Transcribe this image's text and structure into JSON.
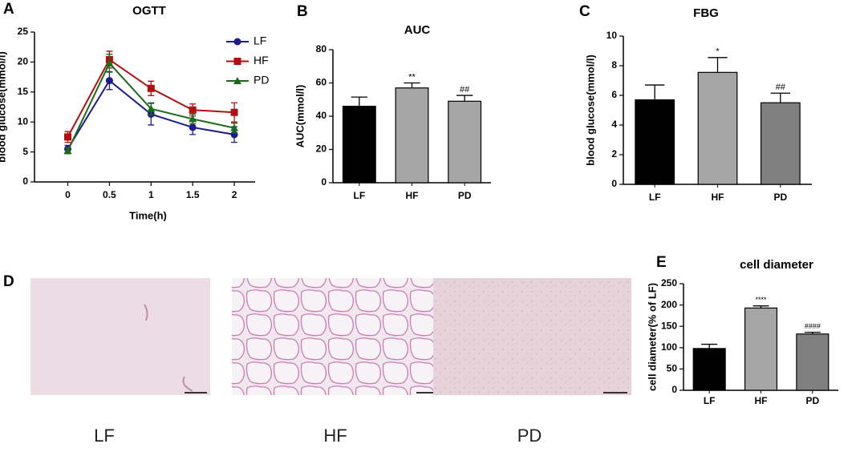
{
  "chart_data": [
    {
      "type": "line",
      "panel_label": "A",
      "title": "OGTT",
      "xlabel": "Time(h)",
      "ylabel": "blood glucose(mmol/l)",
      "x": [
        0,
        0.5,
        1,
        1.5,
        2
      ],
      "xlim": [
        -0.4,
        2.25
      ],
      "xticks": [
        0,
        0.5,
        1,
        1.5,
        2
      ],
      "ylim": [
        0,
        25
      ],
      "yticks": [
        0,
        5,
        10,
        15,
        20,
        25
      ],
      "legend": "upper right",
      "series": [
        {
          "name": "LF",
          "color": "#1c1c8c",
          "marker": "circle",
          "values": [
            5.5,
            16.9,
            11.3,
            9.1,
            7.9
          ],
          "errors": [
            0.6,
            1.5,
            1.8,
            1.2,
            1.3
          ]
        },
        {
          "name": "HF",
          "color": "#b01010",
          "marker": "square",
          "values": [
            7.5,
            20.4,
            15.6,
            12.0,
            11.6
          ],
          "errors": [
            0.9,
            1.4,
            1.2,
            1.0,
            1.6
          ]
        },
        {
          "name": "PD",
          "color": "#1a6b1a",
          "marker": "triangle",
          "values": [
            5.2,
            19.8,
            12.2,
            10.5,
            9.0
          ],
          "errors": [
            0.5,
            1.5,
            1.0,
            0.8,
            0.8
          ]
        }
      ]
    },
    {
      "type": "bar",
      "panel_label": "B",
      "title": "AUC",
      "ylabel": "AUC(mmol/l)",
      "categories": [
        "LF",
        "HF",
        "PD"
      ],
      "values": [
        46,
        57,
        49
      ],
      "errors": [
        5.5,
        3,
        3.5
      ],
      "colors": [
        "#000000",
        "#a6a6a6",
        "#a6a6a6"
      ],
      "annotations": [
        null,
        "**",
        "##"
      ],
      "ylim": [
        0,
        80
      ],
      "yticks": [
        0,
        20,
        40,
        60,
        80
      ]
    },
    {
      "type": "bar",
      "panel_label": "C",
      "title": "FBG",
      "ylabel": "blood glucose(mmol/l)",
      "categories": [
        "LF",
        "HF",
        "PD"
      ],
      "values": [
        5.7,
        7.55,
        5.5
      ],
      "errors": [
        1.0,
        1.0,
        0.65
      ],
      "colors": [
        "#000000",
        "#a6a6a6",
        "#808080"
      ],
      "annotations": [
        null,
        "*",
        "##"
      ],
      "ylim": [
        0,
        10
      ],
      "yticks": [
        0,
        2,
        4,
        6,
        8,
        10
      ]
    },
    {
      "type": "bar",
      "panel_label": "E",
      "title": "cell diameter",
      "ylabel": "cell diameter(% of LF)",
      "categories": [
        "LF",
        "HF",
        "PD"
      ],
      "values": [
        98,
        193,
        132
      ],
      "errors": [
        10,
        5,
        4
      ],
      "colors": [
        "#000000",
        "#a6a6a6",
        "#808080"
      ],
      "annotations": [
        null,
        "****",
        "####"
      ],
      "ylim": [
        0,
        250
      ],
      "yticks": [
        0,
        50,
        100,
        150,
        200,
        250
      ]
    }
  ],
  "histology": {
    "panel_label": "D",
    "labels": [
      "LF",
      "HF",
      "PD"
    ]
  }
}
